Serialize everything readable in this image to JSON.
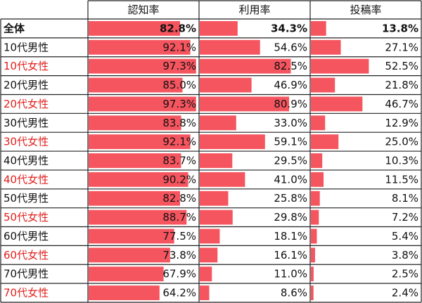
{
  "chart_data": {
    "type": "table",
    "columns": [
      "認知率",
      "利用率",
      "投稿率"
    ],
    "rows": [
      {
        "label": "全体",
        "highlight": false,
        "total": true,
        "values": [
          82.8,
          34.3,
          13.8
        ]
      },
      {
        "label": "10代男性",
        "highlight": false,
        "total": false,
        "values": [
          92.1,
          54.6,
          27.1
        ]
      },
      {
        "label": "10代女性",
        "highlight": true,
        "total": false,
        "values": [
          97.3,
          82.5,
          52.5
        ]
      },
      {
        "label": "20代男性",
        "highlight": false,
        "total": false,
        "values": [
          85.0,
          46.9,
          21.8
        ]
      },
      {
        "label": "20代女性",
        "highlight": true,
        "total": false,
        "values": [
          97.3,
          80.9,
          46.7
        ]
      },
      {
        "label": "30代男性",
        "highlight": false,
        "total": false,
        "values": [
          83.8,
          33.0,
          12.9
        ]
      },
      {
        "label": "30代女性",
        "highlight": true,
        "total": false,
        "values": [
          92.1,
          59.1,
          25.0
        ]
      },
      {
        "label": "40代男性",
        "highlight": false,
        "total": false,
        "values": [
          83.7,
          29.5,
          10.3
        ]
      },
      {
        "label": "40代女性",
        "highlight": true,
        "total": false,
        "values": [
          90.2,
          41.0,
          11.5
        ]
      },
      {
        "label": "50代男性",
        "highlight": false,
        "total": false,
        "values": [
          82.8,
          25.8,
          8.1
        ]
      },
      {
        "label": "50代女性",
        "highlight": true,
        "total": false,
        "values": [
          88.7,
          29.8,
          7.2
        ]
      },
      {
        "label": "60代男性",
        "highlight": false,
        "total": false,
        "values": [
          77.5,
          18.1,
          5.4
        ]
      },
      {
        "label": "60代女性",
        "highlight": true,
        "total": false,
        "values": [
          73.8,
          16.1,
          3.8
        ]
      },
      {
        "label": "70代男性",
        "highlight": false,
        "total": false,
        "values": [
          67.9,
          11.0,
          2.5
        ]
      },
      {
        "label": "70代女性",
        "highlight": true,
        "total": false,
        "values": [
          64.2,
          8.6,
          2.4
        ]
      }
    ],
    "value_suffix": "%",
    "bar_color": "#f5555f",
    "highlight_text_color": "#e0201c",
    "text_color": "#111111",
    "border_color": "#222222",
    "scale_max": 100
  }
}
